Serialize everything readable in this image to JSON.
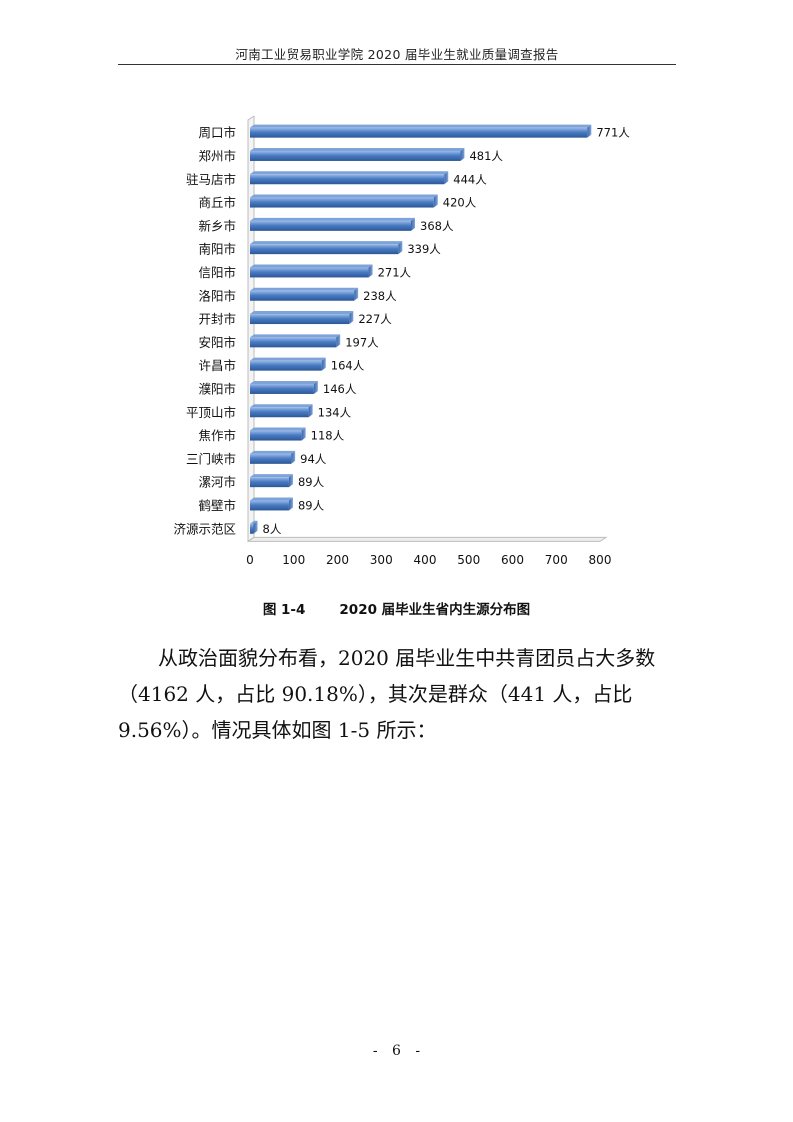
{
  "header": {
    "title": "河南工业贸易职业学院 2020 届毕业生就业质量调查报告"
  },
  "figure": {
    "number": "图 1-4",
    "caption": "2020 届毕业生省内生源分布图"
  },
  "chart_data": {
    "type": "bar",
    "orientation": "horizontal",
    "categories": [
      "周口市",
      "郑州市",
      "驻马店市",
      "商丘市",
      "新乡市",
      "南阳市",
      "信阳市",
      "洛阳市",
      "开封市",
      "安阳市",
      "许昌市",
      "濮阳市",
      "平顶山市",
      "焦作市",
      "三门峡市",
      "漯河市",
      "鹤壁市",
      "济源示范区"
    ],
    "values": [
      771,
      481,
      444,
      420,
      368,
      339,
      271,
      238,
      227,
      197,
      164,
      146,
      134,
      118,
      94,
      89,
      89,
      8
    ],
    "value_suffix": "人",
    "xlim": [
      0,
      800
    ],
    "xticks": [
      0,
      100,
      200,
      300,
      400,
      500,
      600,
      700,
      800
    ],
    "bar_color": "#4a7cc4",
    "grid": false,
    "legend": "none"
  },
  "body": {
    "paragraph": "从政治面貌分布看，2020 届毕业生中共青团员占大多数（4162 人，占比 90.18%），其次是群众（441 人，占比 9.56%）。情况具体如图 1-5 所示："
  },
  "footer": {
    "dash_left": "-",
    "page": "6",
    "dash_right": "-"
  }
}
